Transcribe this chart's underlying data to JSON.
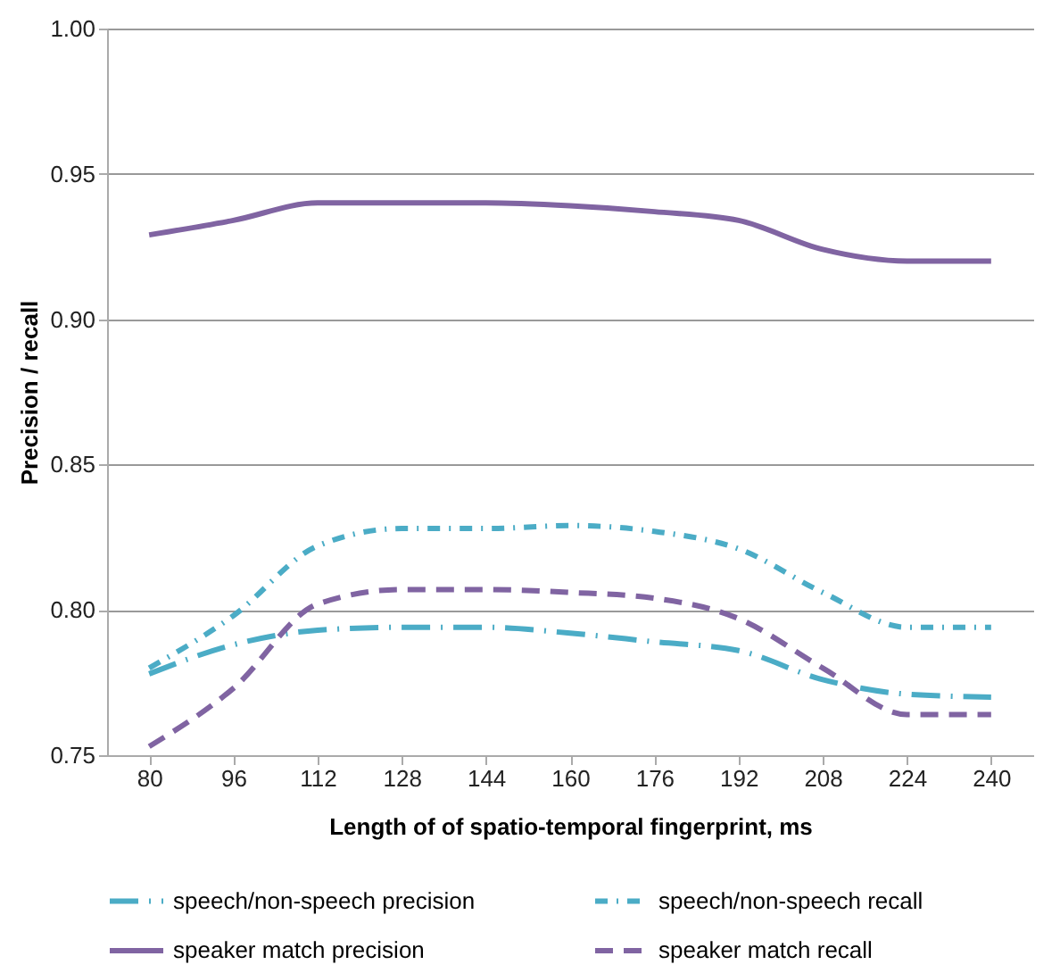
{
  "chart_data": {
    "type": "line",
    "xlabel": "Length of of spatio-temporal fingerprint, ms",
    "ylabel": "Precision / recall",
    "categories": [
      "80",
      "96",
      "112",
      "128",
      "144",
      "160",
      "176",
      "192",
      "208",
      "224",
      "240"
    ],
    "series": [
      {
        "name": "speech/non-speech precision",
        "color": "#4bacc6",
        "line_style": "longdashdot",
        "values": [
          0.778,
          0.788,
          0.793,
          0.794,
          0.794,
          0.792,
          0.789,
          0.786,
          0.776,
          0.771,
          0.77
        ]
      },
      {
        "name": "speech/non-speech recall",
        "color": "#4bacc6",
        "line_style": "dashdot",
        "values": [
          0.78,
          0.798,
          0.822,
          0.828,
          0.828,
          0.829,
          0.827,
          0.821,
          0.806,
          0.794,
          0.794
        ]
      },
      {
        "name": "speaker match precision",
        "color": "#8064a2",
        "line_style": "solid",
        "values": [
          0.929,
          0.934,
          0.94,
          0.94,
          0.94,
          0.939,
          0.937,
          0.934,
          0.924,
          0.92,
          0.92
        ]
      },
      {
        "name": "speaker match recall",
        "color": "#8064a2",
        "line_style": "dashed",
        "values": [
          0.753,
          0.773,
          0.802,
          0.807,
          0.807,
          0.806,
          0.804,
          0.797,
          0.78,
          0.764,
          0.764
        ]
      }
    ],
    "ylim": [
      0.75,
      1.0
    ],
    "yticks": [
      {
        "value": 0.75,
        "label": "0.75"
      },
      {
        "value": 0.8,
        "label": "0.80"
      },
      {
        "value": 0.85,
        "label": "0.85"
      },
      {
        "value": 0.9,
        "label": "0.90"
      },
      {
        "value": 0.95,
        "label": "0.95"
      },
      {
        "value": 1.0,
        "label": "1.00"
      }
    ],
    "grid": "y",
    "legend": "bottom",
    "marker": "none"
  }
}
